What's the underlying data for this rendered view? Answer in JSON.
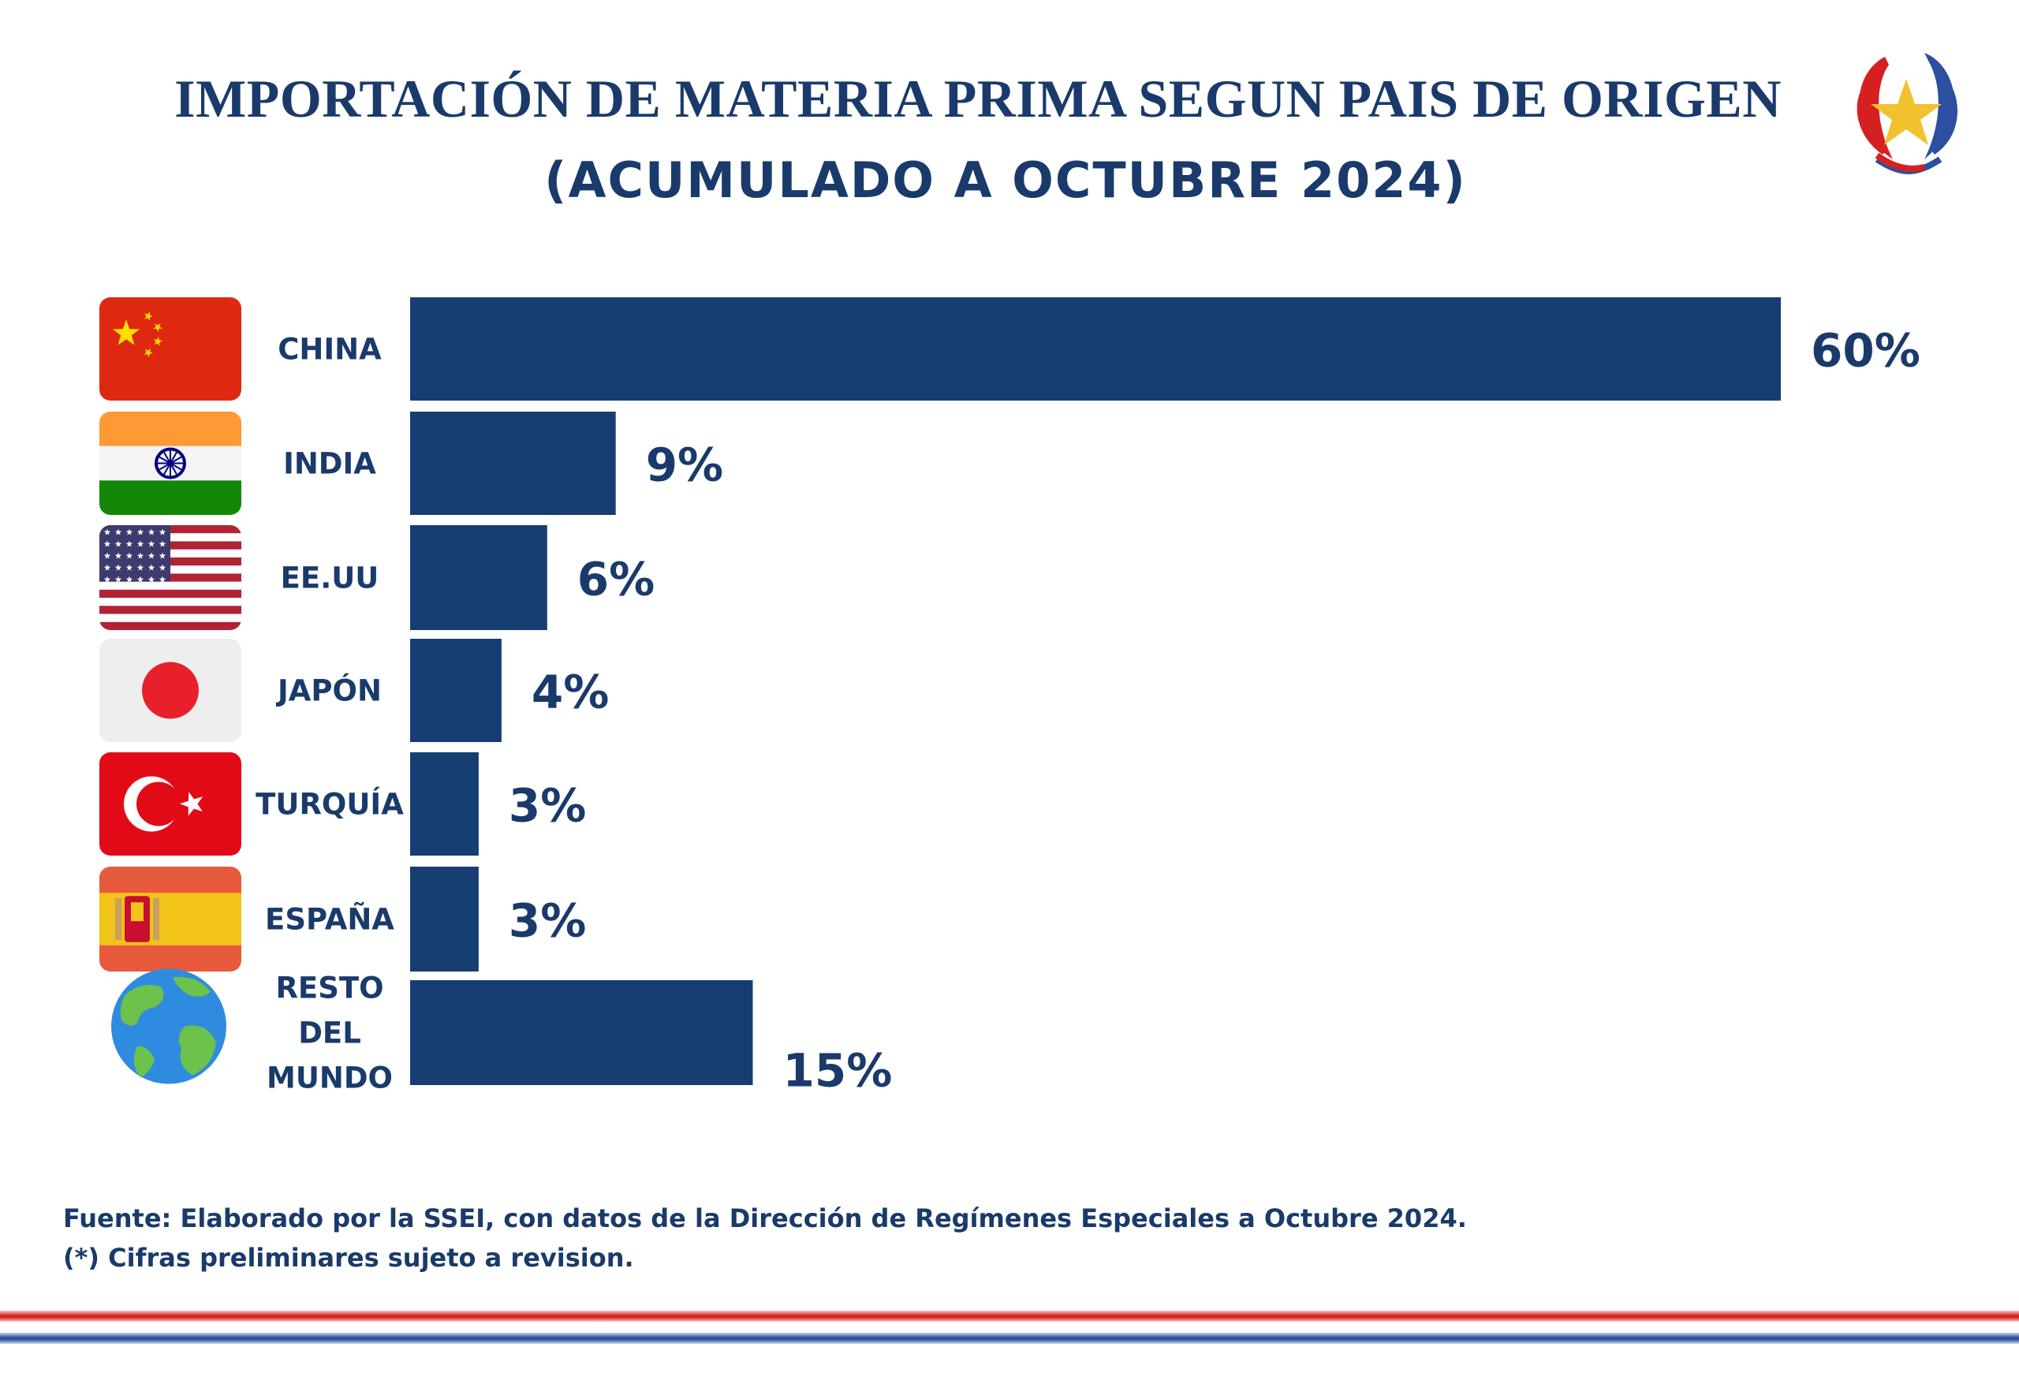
{
  "header": {
    "title": "IMPORTACIÓN DE MATERIA PRIMA SEGUN PAIS DE ORIGEN",
    "subtitle": "(ACUMULADO A OCTUBRE 2024)"
  },
  "emblem": {
    "icon": "paraguay-national-emblem-icon"
  },
  "colors": {
    "bar": "#163e72",
    "text": "#1a3a6b",
    "accent_red": "#d62020",
    "accent_blue": "#2c4fa0"
  },
  "chart_data": {
    "type": "bar",
    "orientation": "horizontal",
    "title": "IMPORTACIÓN DE MATERIA PRIMA SEGUN PAIS DE ORIGEN",
    "subtitle": "(ACUMULADO A OCTUBRE 2024)",
    "categories": [
      "CHINA",
      "INDIA",
      "EE.UU",
      "JAPÓN",
      "TURQUÍA",
      "ESPAÑA",
      "RESTO DEL MUNDO"
    ],
    "category_lines": [
      [
        "CHINA"
      ],
      [
        "INDIA"
      ],
      [
        "EE.UU"
      ],
      [
        "JAPÓN"
      ],
      [
        "TURQUÍA"
      ],
      [
        "ESPAÑA"
      ],
      [
        "RESTO",
        "DEL",
        "MUNDO"
      ]
    ],
    "values": [
      60,
      9,
      6,
      4,
      3,
      3,
      15
    ],
    "value_labels": [
      "60%",
      "9%",
      "6%",
      "4%",
      "3%",
      "3%",
      "15%"
    ],
    "flags": [
      "china-flag-icon",
      "india-flag-icon",
      "usa-flag-icon",
      "japan-flag-icon",
      "turkey-flag-icon",
      "spain-flag-icon",
      "globe-icon"
    ],
    "unit": "%",
    "xlim": [
      0,
      60
    ],
    "grid": false,
    "legend": "none"
  },
  "footer": {
    "source": "Fuente: Elaborado por la SSEI, con datos de la Dirección de Regímenes Especiales a Octubre 2024.",
    "note": "(*) Cifras preliminares sujeto a revision."
  }
}
